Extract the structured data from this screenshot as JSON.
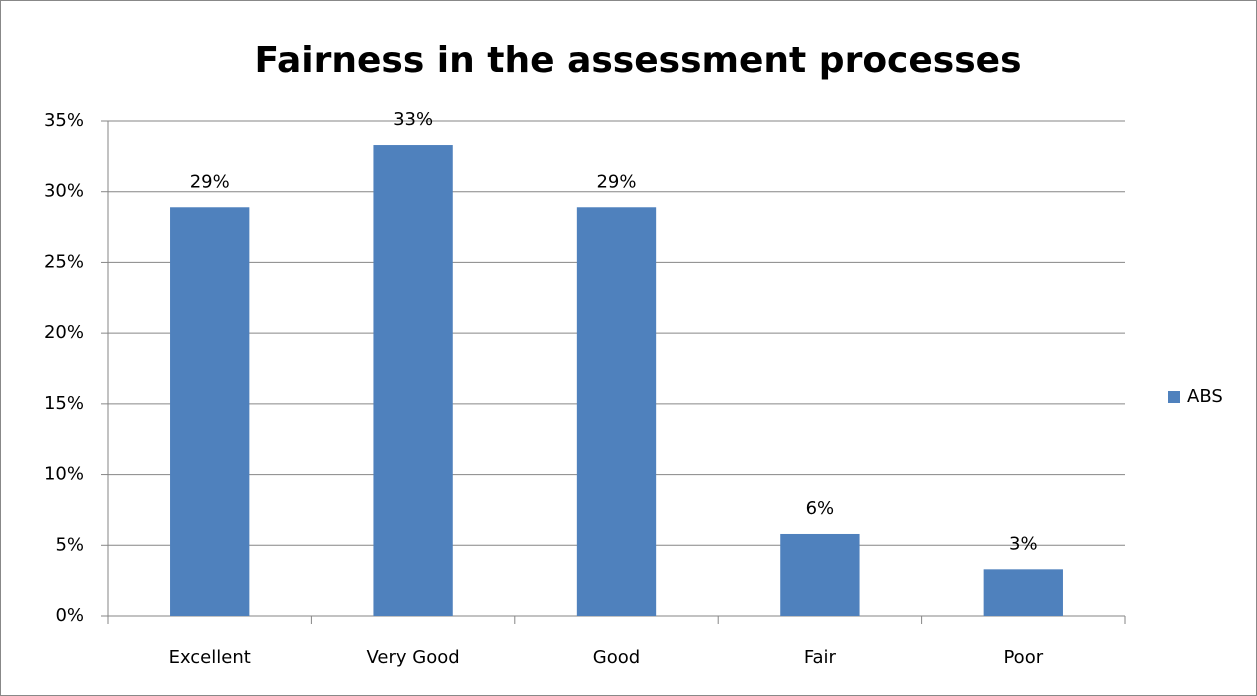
{
  "chart_data": {
    "type": "bar",
    "title": "Fairness in the assessment processes",
    "categories": [
      "Excellent",
      "Very Good",
      "Good",
      "Fair",
      "Poor"
    ],
    "series": [
      {
        "name": "ABS",
        "color": "#4f81bd",
        "values": [
          28.9,
          33.3,
          28.9,
          5.8,
          3.3
        ],
        "value_labels": [
          "29%",
          "33%",
          "29%",
          "6%",
          "3%"
        ]
      }
    ],
    "ylim": [
      0,
      35
    ],
    "yticks": [
      {
        "value": 0,
        "label": "0%"
      },
      {
        "value": 5,
        "label": "5%"
      },
      {
        "value": 10,
        "label": "10%"
      },
      {
        "value": 15,
        "label": "15%"
      },
      {
        "value": 20,
        "label": "20%"
      },
      {
        "value": 25,
        "label": "25%"
      },
      {
        "value": 30,
        "label": "30%"
      },
      {
        "value": 35,
        "label": "35%"
      }
    ],
    "grid": true,
    "legend": "right"
  }
}
